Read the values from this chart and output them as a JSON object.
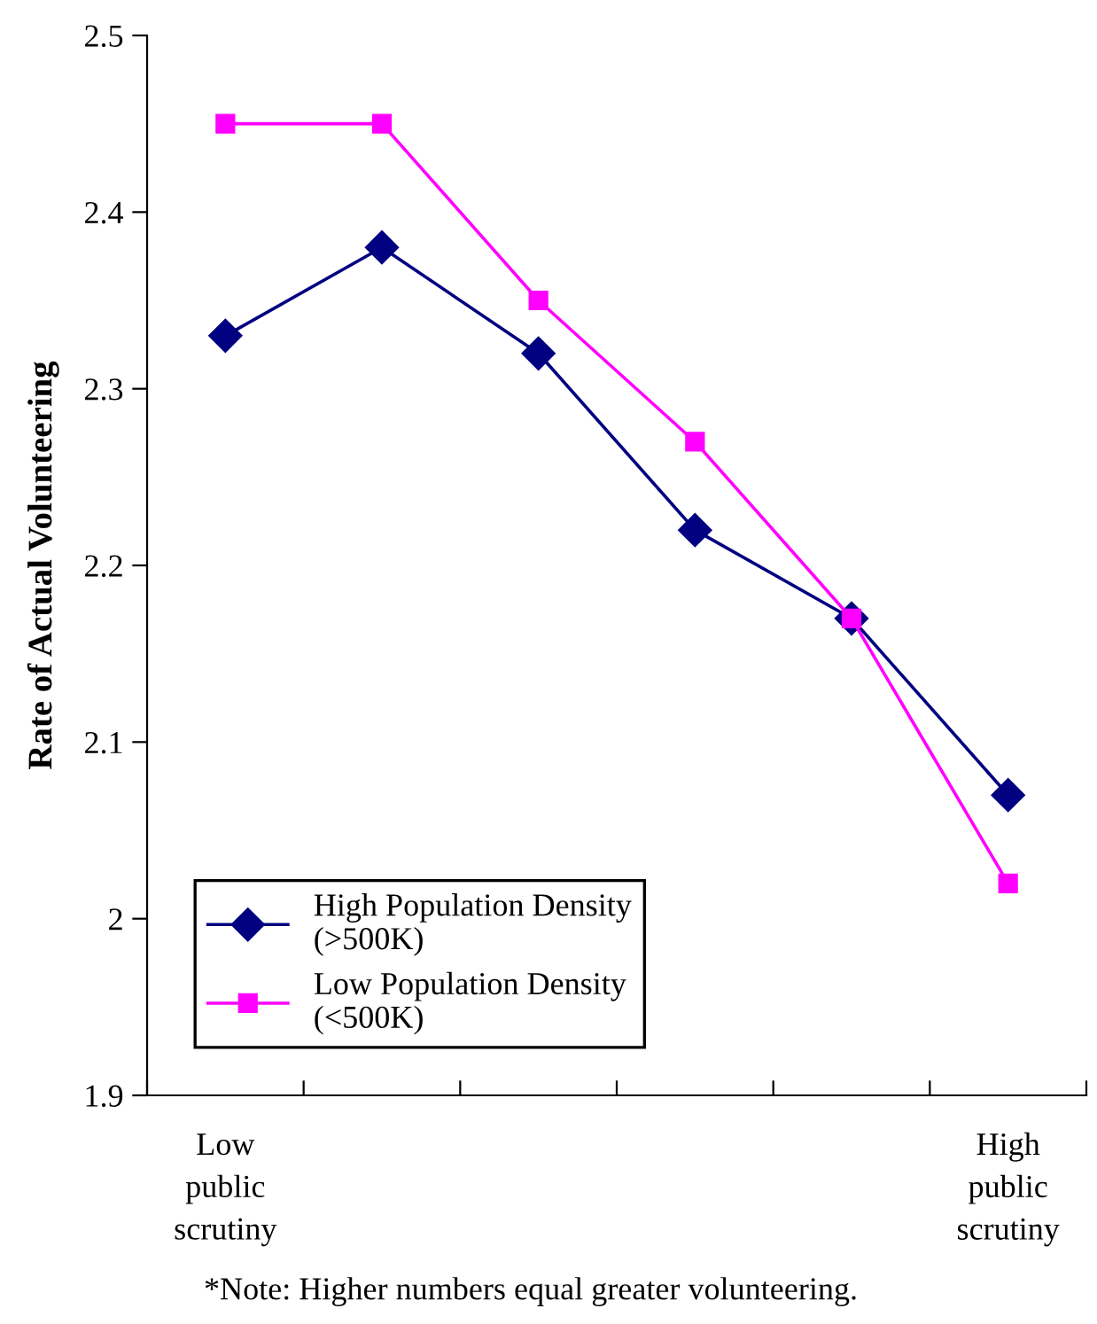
{
  "chart_data": {
    "type": "line",
    "ylabel": "Rate of Actual Volunteering",
    "categories": [
      "Low\npublic\nscrutiny",
      null,
      null,
      null,
      null,
      "High\npublic\nscrutiny"
    ],
    "series": [
      {
        "name": "High Population Density\n(>500K)",
        "color": "#000080",
        "marker": "diamond",
        "values": [
          2.33,
          2.38,
          2.32,
          2.22,
          2.17,
          2.07
        ]
      },
      {
        "name": "Low Population Density\n(<500K)",
        "color": "#ff00ff",
        "marker": "square",
        "values": [
          2.45,
          2.45,
          2.35,
          2.27,
          2.17,
          2.02
        ]
      }
    ],
    "ylim": [
      1.9,
      2.5
    ],
    "yticks": [
      1.9,
      2,
      2.1,
      2.2,
      2.3,
      2.4,
      2.5
    ],
    "grid": false,
    "legend": "bottom left",
    "annotations": [
      "*Note: Higher numbers equal greater volunteering."
    ]
  }
}
